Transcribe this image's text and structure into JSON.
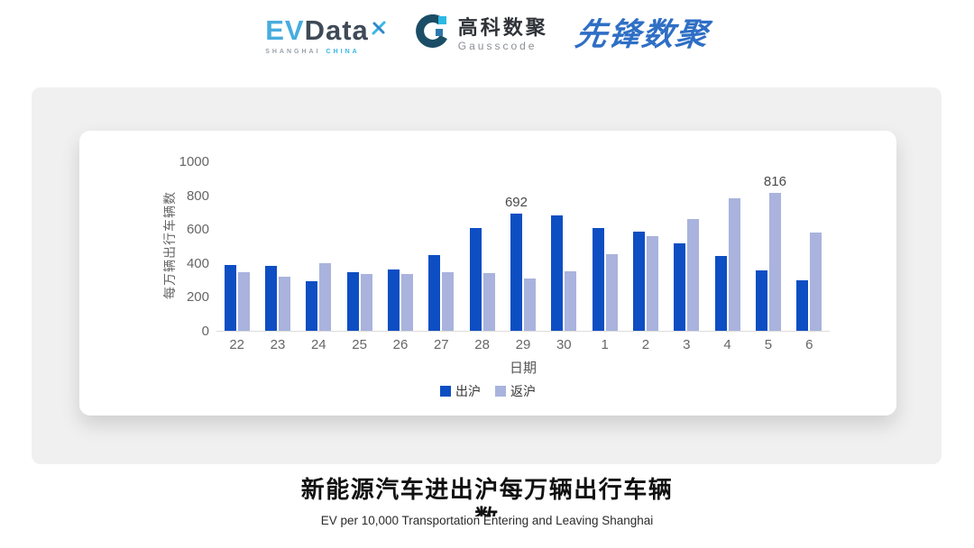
{
  "header": {
    "logos": {
      "evdata": {
        "ev": "EV",
        "data": "Data",
        "sub_left": "SHANGHAI",
        "sub_right": "CHINA"
      },
      "gausscode": {
        "cn": "高科数聚",
        "en": "Gausscode"
      },
      "xianfeng": {
        "text": "先锋数聚"
      }
    }
  },
  "chart_data": {
    "type": "bar",
    "title": "",
    "xlabel": "日期",
    "ylabel": "每万辆出行车辆数",
    "ylim": [
      0,
      1000
    ],
    "yticks": [
      0,
      200,
      400,
      600,
      800,
      1000
    ],
    "grid": false,
    "legend_position": "bottom",
    "categories": [
      "22",
      "23",
      "24",
      "25",
      "26",
      "27",
      "28",
      "29",
      "30",
      "1",
      "2",
      "3",
      "4",
      "5",
      "6"
    ],
    "series": [
      {
        "name": "出沪",
        "color": "#0d4ec3",
        "values": [
          390,
          382,
          295,
          345,
          360,
          446,
          606,
          692,
          680,
          608,
          586,
          514,
          441,
          357,
          300
        ]
      },
      {
        "name": "返沪",
        "color": "#a9b3dd",
        "values": [
          344,
          318,
          398,
          336,
          335,
          345,
          340,
          310,
          352,
          450,
          561,
          657,
          781,
          816,
          581
        ]
      }
    ],
    "annotations": [
      {
        "series": 0,
        "index": 7,
        "label": "692"
      },
      {
        "series": 1,
        "index": 13,
        "label": "816"
      }
    ]
  },
  "footer": {
    "title": "新能源汽车进出沪每万辆出行车辆数",
    "subtitle": "EV per 10,000 Transportation Entering and Leaving Shanghai"
  },
  "colors": {
    "bar_dark": "#0d4ec3",
    "bar_light": "#a9b3dd",
    "panel_bg": "#f0f0f0",
    "axis_line": "#dcdcdc",
    "evdata_blue": "#47ACDE",
    "evdata_dark": "#3E4A57",
    "gauss_mark": "#1b4d66",
    "xianfeng_blue": "#2f6fc5"
  }
}
